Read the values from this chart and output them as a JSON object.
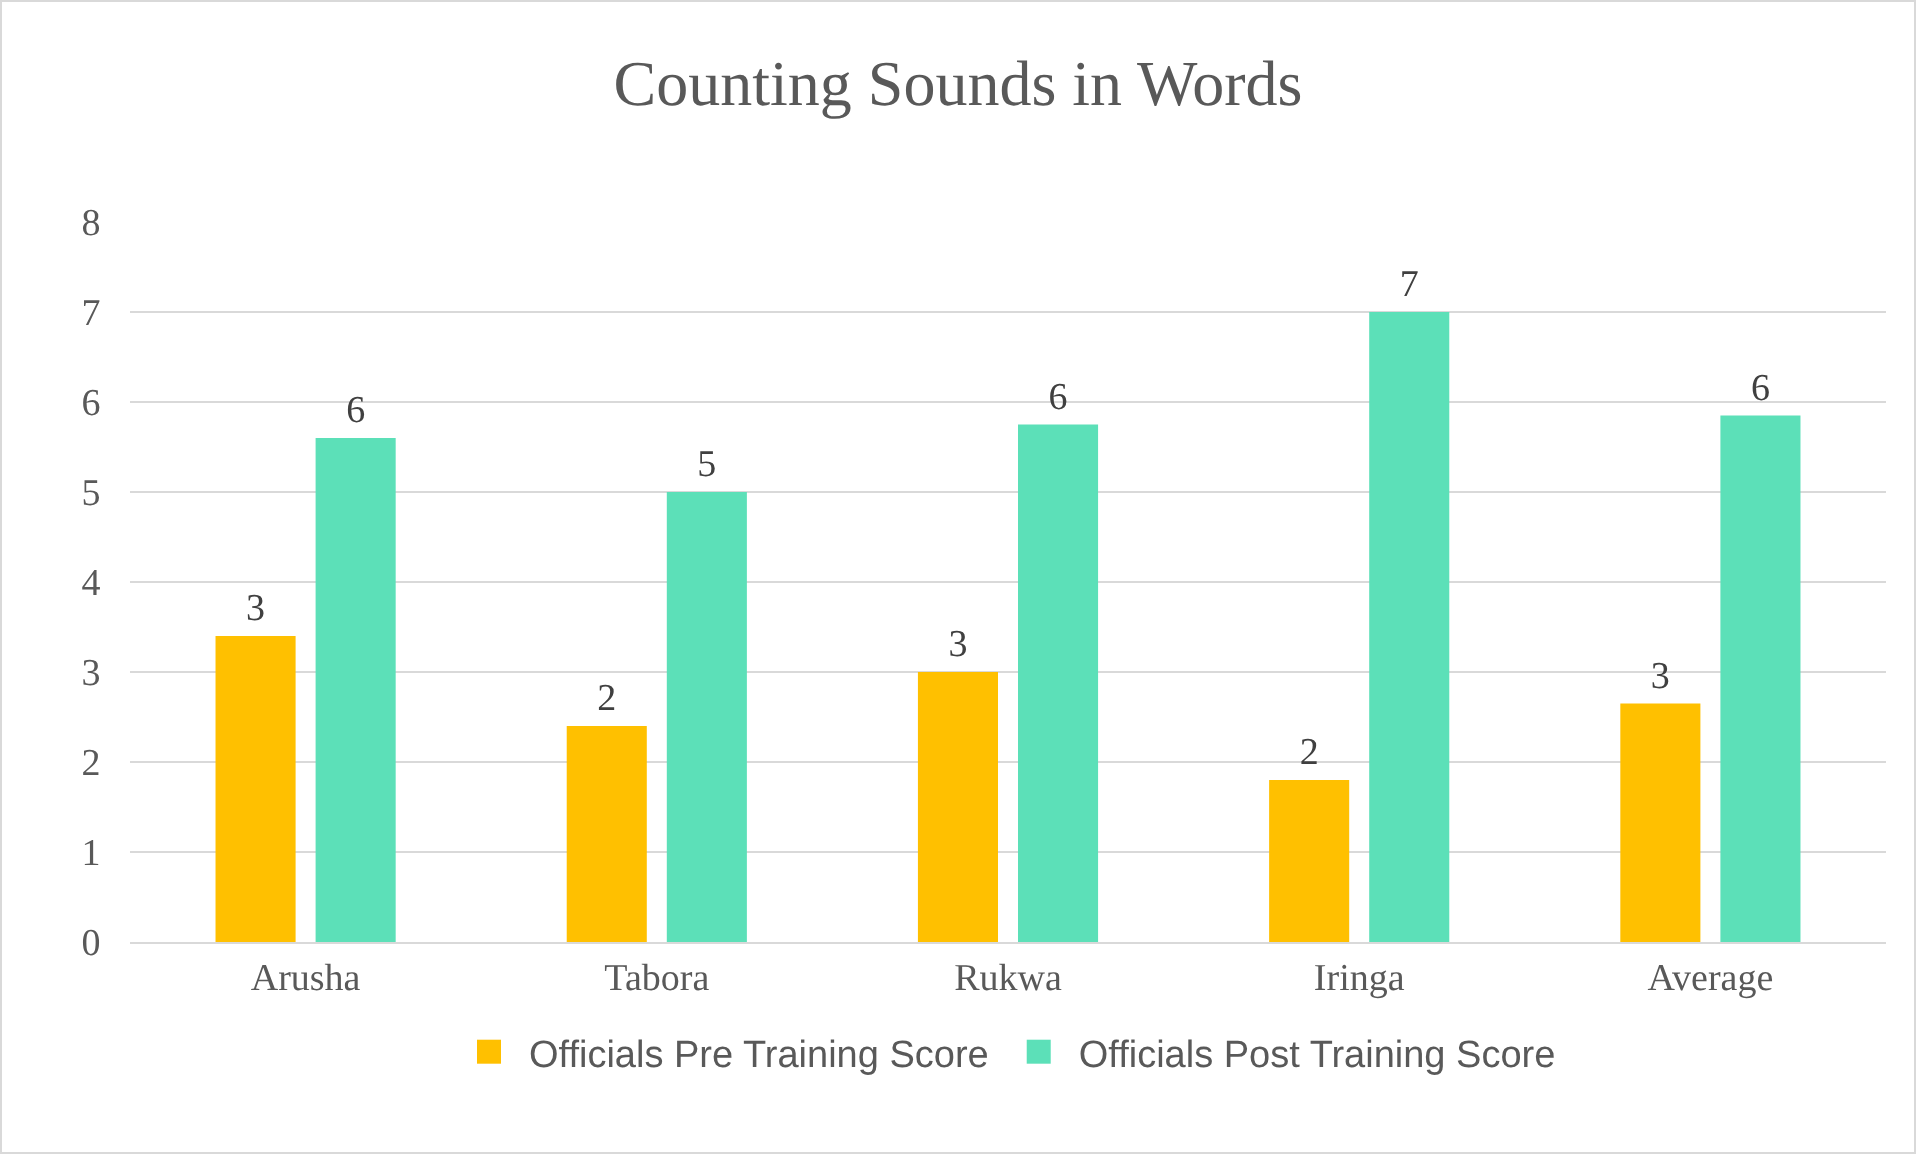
{
  "chart_data": {
    "type": "bar",
    "title": "Counting Sounds in Words",
    "categories": [
      "Arusha",
      "Tabora",
      "Rukwa",
      "Iringa",
      "Average"
    ],
    "series": [
      {
        "name": "Officials Pre Training Score",
        "color": "#ffc000",
        "values": [
          3.4,
          2.4,
          3.0,
          1.8,
          2.65
        ],
        "value_labels": [
          "3",
          "2",
          "3",
          "2",
          "3"
        ]
      },
      {
        "name": "Officials Post Training Score",
        "color": "#5ce0b8",
        "values": [
          5.6,
          5.0,
          5.75,
          7.0,
          5.85
        ],
        "value_labels": [
          "6",
          "5",
          "6",
          "7",
          "6"
        ]
      }
    ],
    "ylim": [
      0,
      8
    ],
    "yticks": [
      0,
      1,
      2,
      3,
      4,
      5,
      6,
      7,
      8
    ],
    "grid": "y",
    "legend": "bottom"
  }
}
